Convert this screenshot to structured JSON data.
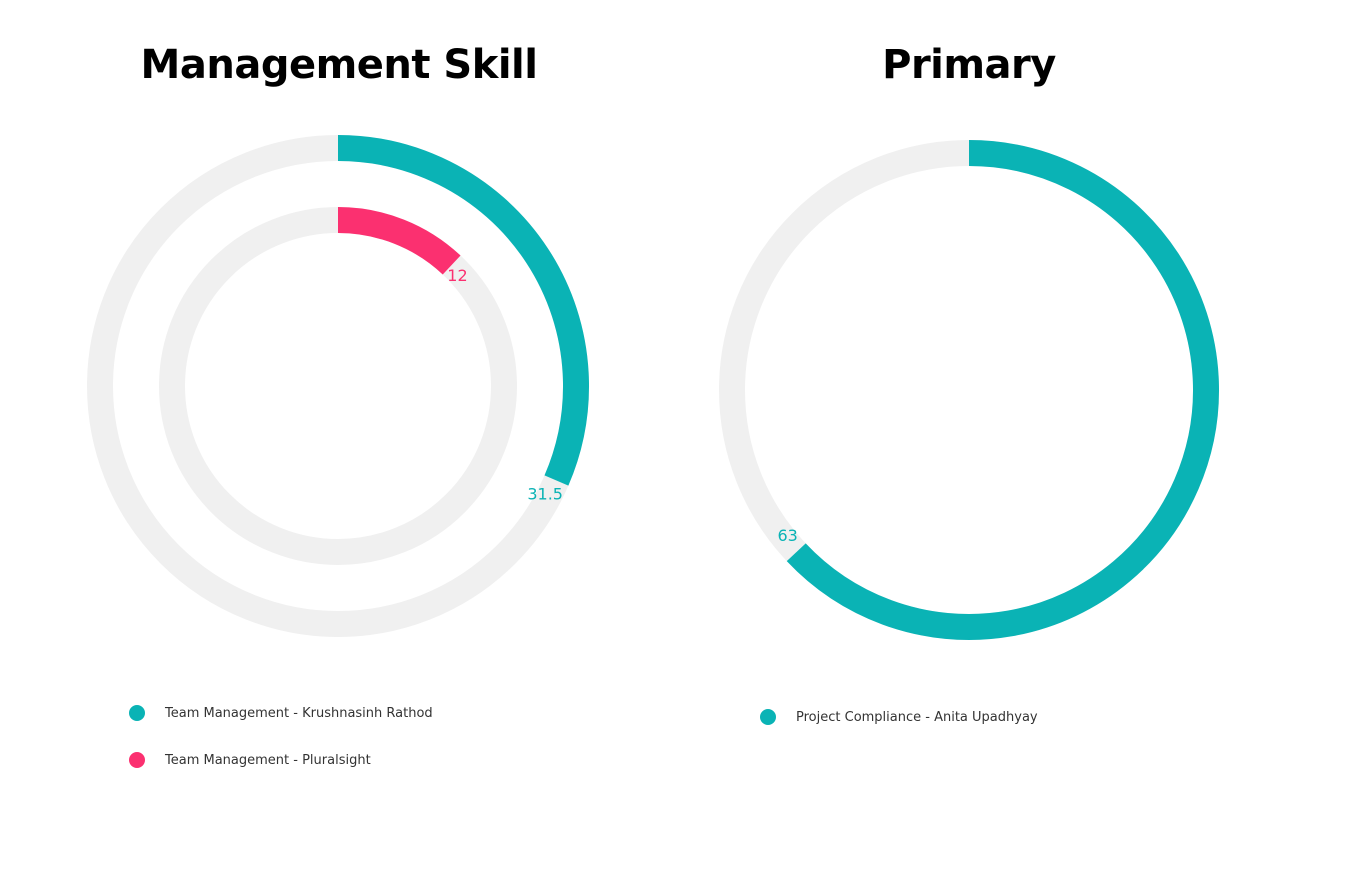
{
  "chart_data": [
    {
      "type": "radialBar",
      "title": "Management Skill",
      "max": 100,
      "track_color": "#f0f0f0",
      "series": [
        {
          "name": "Team Management - Krushnasinh Rathod",
          "value": 31.5,
          "label": "31.5",
          "color": "#0ab3b5"
        },
        {
          "name": "Team Management - Pluralsight",
          "value": 12,
          "label": "12",
          "color": "#fb3070"
        }
      ],
      "legend_position": "bottom-left"
    },
    {
      "type": "radialBar",
      "title": "Primary",
      "max": 100,
      "track_color": "#f0f0f0",
      "series": [
        {
          "name": "Project Compliance - Anita Upadhyay",
          "value": 63,
          "label": "63",
          "color": "#0ab3b5"
        }
      ],
      "legend_position": "bottom-left"
    }
  ]
}
